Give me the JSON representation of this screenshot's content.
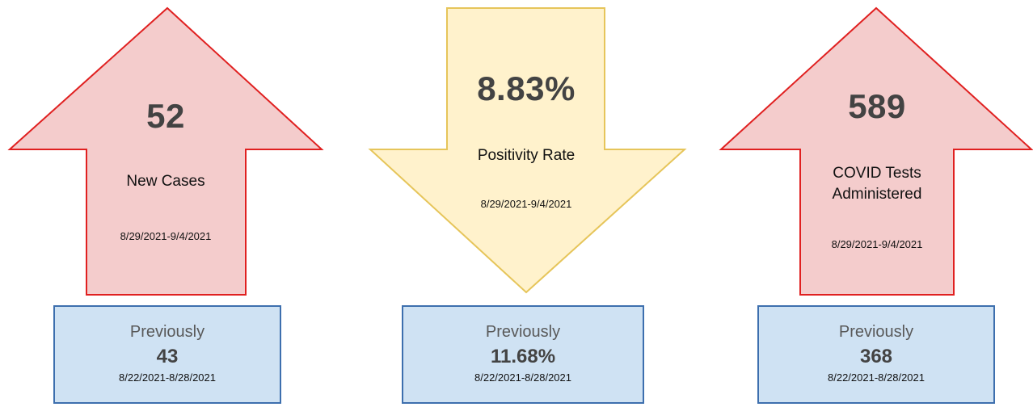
{
  "colors": {
    "up_fill": "#f4cccc",
    "up_stroke": "#e02020",
    "down_fill": "#fff2cc",
    "down_stroke": "#e6c55a",
    "box_fill": "#cfe2f3",
    "box_stroke": "#3d6fae"
  },
  "cards": [
    {
      "direction": "up",
      "value": "52",
      "label": "New Cases",
      "dates": "8/29/2021-9/4/2021",
      "previous": {
        "label": "Previously",
        "value": "43",
        "dates": "8/22/2021-8/28/2021"
      }
    },
    {
      "direction": "down",
      "value": "8.83%",
      "label": "Positivity Rate",
      "dates": "8/29/2021-9/4/2021",
      "previous": {
        "label": "Previously",
        "value": "11.68%",
        "dates": "8/22/2021-8/28/2021"
      }
    },
    {
      "direction": "up",
      "value": "589",
      "label": "COVID Tests Administered",
      "dates": "8/29/2021-9/4/2021",
      "previous": {
        "label": "Previously",
        "value": "368",
        "dates": "8/22/2021-8/28/2021"
      }
    }
  ]
}
